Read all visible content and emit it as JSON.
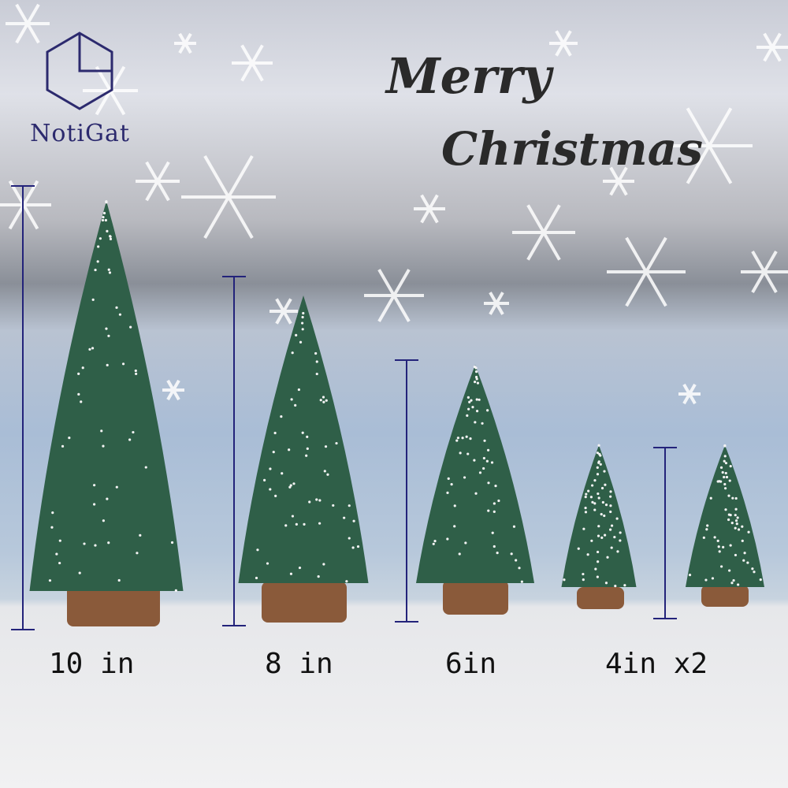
{
  "logo": {
    "text": "NotiGat",
    "color": "#2c2a6e"
  },
  "heading": {
    "line1": "Merry",
    "line2": "Christmas"
  },
  "sizes": [
    {
      "label": "10 in"
    },
    {
      "label": "8 in"
    },
    {
      "label": "6in"
    },
    {
      "label": "4in x2"
    }
  ],
  "colors": {
    "tree": "#2f5f48",
    "trunk": "#8a5a3a",
    "measure_line": "#23237a"
  }
}
